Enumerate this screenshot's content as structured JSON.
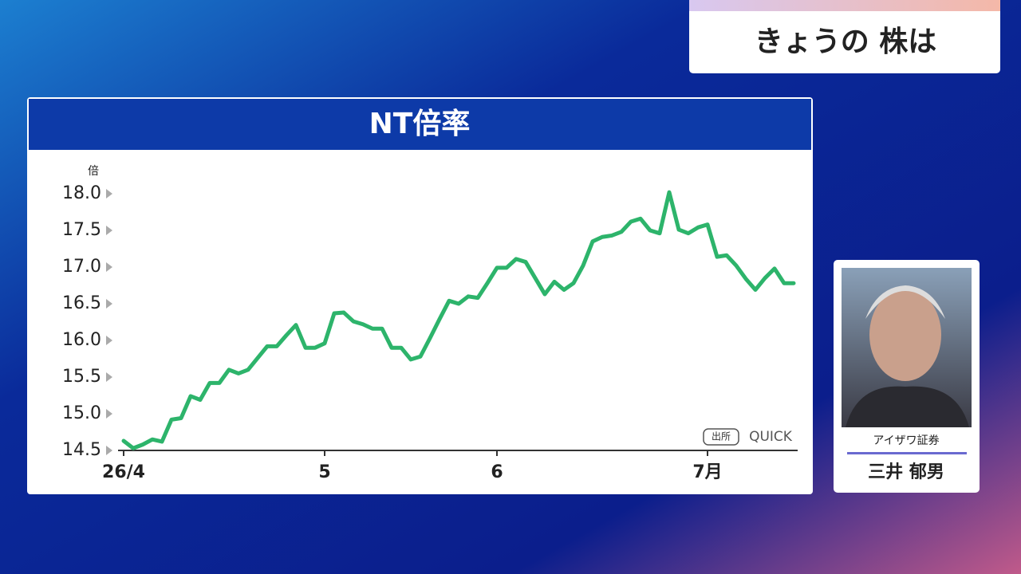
{
  "header": {
    "title": "きょうの 株は"
  },
  "chart_data": {
    "type": "line",
    "title": "NT倍率",
    "y_unit": "倍",
    "categories": [
      "26/4",
      null,
      null,
      null,
      null,
      null,
      null,
      null,
      null,
      null,
      null,
      null,
      null,
      null,
      null,
      null,
      null,
      null,
      null,
      null,
      null,
      "5",
      null,
      null,
      null,
      null,
      null,
      null,
      null,
      null,
      null,
      null,
      null,
      null,
      null,
      null,
      null,
      null,
      null,
      "6",
      null,
      null,
      null,
      null,
      null,
      null,
      null,
      null,
      null,
      null,
      null,
      null,
      null,
      null,
      null,
      null,
      null,
      null,
      null,
      null,
      null,
      "7月",
      null,
      null,
      null,
      null,
      null,
      null,
      null,
      null,
      null
    ],
    "series": [
      {
        "name": "NT倍率",
        "color": "#2db46b",
        "values": [
          14.63,
          14.53,
          14.58,
          14.65,
          14.62,
          14.92,
          14.94,
          15.24,
          15.19,
          15.42,
          15.42,
          15.6,
          15.55,
          15.6,
          15.76,
          15.92,
          15.92,
          16.07,
          16.21,
          15.9,
          15.9,
          15.96,
          16.37,
          16.38,
          16.26,
          16.22,
          16.16,
          16.16,
          15.9,
          15.9,
          15.74,
          15.78,
          16.03,
          16.29,
          16.54,
          16.5,
          16.6,
          16.58,
          16.78,
          16.99,
          16.99,
          17.11,
          17.07,
          16.85,
          16.63,
          16.8,
          16.69,
          16.78,
          17.02,
          17.35,
          17.41,
          17.43,
          17.48,
          17.62,
          17.66,
          17.5,
          17.46,
          18.02,
          17.51,
          17.46,
          17.54,
          17.58,
          17.14,
          17.16,
          17.02,
          16.84,
          16.69,
          16.85,
          16.98,
          16.78,
          16.78
        ]
      }
    ],
    "ylim": [
      14.5,
      18.0
    ],
    "yticks": [
      14.5,
      {
        "value": 15,
        "label": "15.0"
      },
      15.5,
      {
        "value": 16,
        "label": "16.0"
      },
      16.5,
      {
        "value": 17,
        "label": "17.0"
      },
      17.5,
      {
        "value": 18,
        "label": "18.0"
      }
    ],
    "source_label": "出所",
    "source": "QUICK"
  },
  "guest": {
    "company": "アイザワ証券",
    "name": "三井 郁男"
  }
}
